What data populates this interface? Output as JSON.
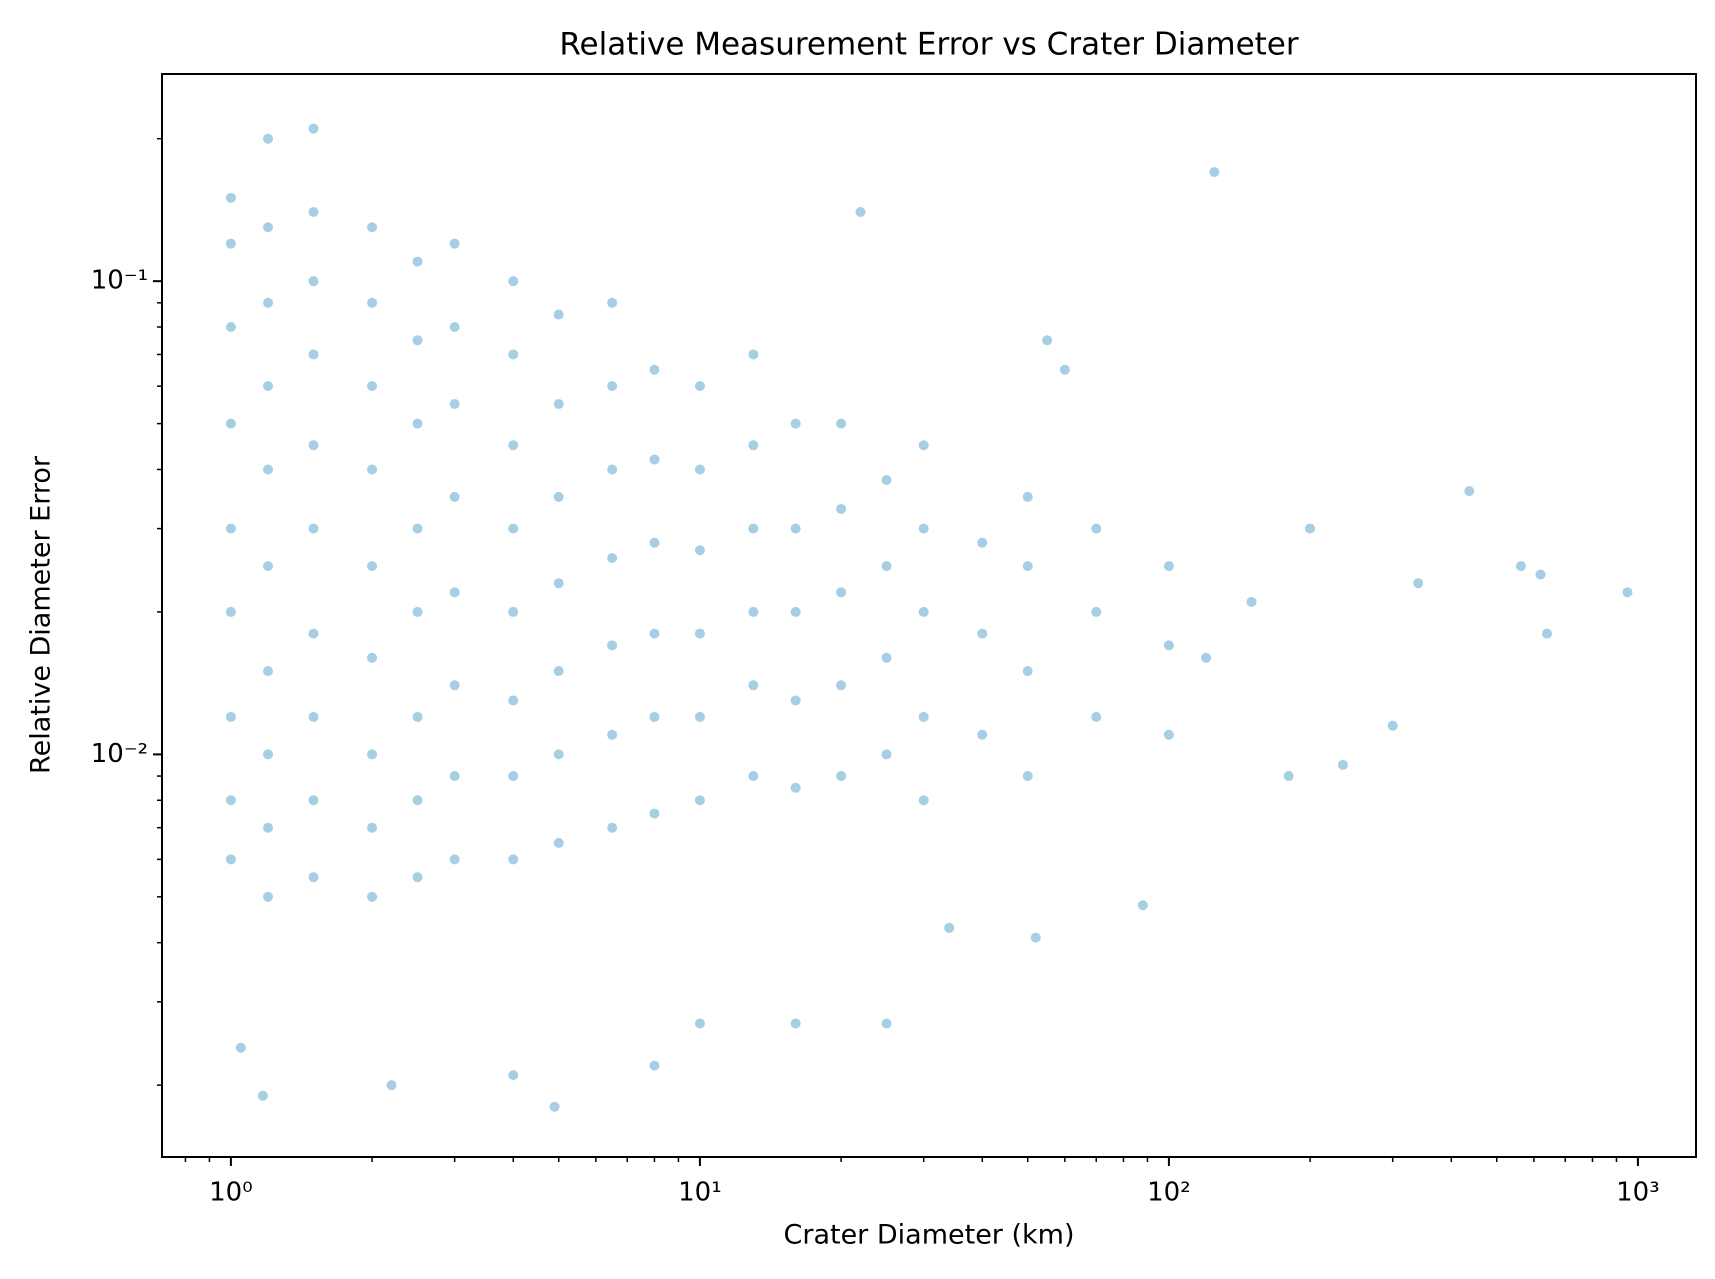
{
  "chart_data": {
    "type": "scatter",
    "title": "Relative Measurement Error vs Crater Diameter",
    "x_label": "Crater Diameter (km)",
    "y_label": "Relative Diameter Error",
    "xscale": "log",
    "yscale": "log",
    "color": "#0072b2",
    "alpha": 0.35,
    "xlim": [
      0.713,
      1330
    ],
    "ylim": [
      0.00141,
      0.274
    ],
    "xticks": [
      {
        "value": 1,
        "label": "10⁰"
      },
      {
        "value": 10,
        "label": "10¹"
      },
      {
        "value": 100,
        "label": "10²"
      },
      {
        "value": 1000,
        "label": "10³"
      }
    ],
    "yticks": [
      {
        "value": 0.01,
        "label": "10⁻²"
      },
      {
        "value": 0.1,
        "label": "10⁻¹"
      }
    ],
    "xminorticks": [
      0.8,
      0.9,
      2,
      3,
      4,
      5,
      6,
      7,
      8,
      9,
      20,
      30,
      40,
      50,
      60,
      70,
      80,
      90,
      200,
      300,
      400,
      500,
      600,
      700,
      800,
      900
    ],
    "yminorticks": [
      0.002,
      0.003,
      0.004,
      0.005,
      0.006,
      0.007,
      0.008,
      0.009,
      0.02,
      0.03,
      0.04,
      0.05,
      0.06,
      0.07,
      0.08,
      0.09,
      0.2
    ],
    "x": [
      1,
      1,
      1,
      1,
      1,
      1,
      1,
      1,
      1,
      1.2,
      1.2,
      1.2,
      1.2,
      1.2,
      1.2,
      1.2,
      1.2,
      1.2,
      1.5,
      1.5,
      1.5,
      1.5,
      1.5,
      1.5,
      1.5,
      1.5,
      1.5,
      2,
      2,
      2,
      2,
      2,
      2,
      2,
      2,
      2,
      2.5,
      2.5,
      2.5,
      2.5,
      2.5,
      2.5,
      2.5,
      2.5,
      3,
      3,
      3,
      3,
      3,
      3,
      3,
      3,
      4,
      4,
      4,
      4,
      4,
      4,
      4,
      4,
      5,
      5,
      5,
      5,
      5,
      5,
      5,
      6.5,
      6.5,
      6.5,
      6.5,
      6.5,
      6.5,
      6.5,
      8,
      8,
      8,
      8,
      8,
      8,
      10,
      10,
      10,
      10,
      10,
      10,
      13,
      13,
      13,
      13,
      13,
      13,
      16,
      16,
      16,
      16,
      16,
      20,
      20,
      20,
      20,
      20,
      25,
      25,
      25,
      25,
      30,
      30,
      30,
      30,
      30,
      40,
      40,
      40,
      50,
      50,
      50,
      50,
      70,
      70,
      70,
      100,
      100,
      100,
      1.2,
      1.5,
      2.2,
      4,
      4.9,
      1.17,
      125,
      22,
      437,
      563,
      620,
      950,
      640,
      300,
      340,
      235,
      52,
      88,
      34,
      16,
      25,
      10,
      150,
      180,
      120,
      55,
      60,
      200,
      8,
      1.05
    ],
    "values": [
      0.006,
      0.008,
      0.012,
      0.02,
      0.03,
      0.05,
      0.08,
      0.12,
      0.15,
      0.005,
      0.007,
      0.01,
      0.015,
      0.025,
      0.04,
      0.06,
      0.09,
      0.13,
      0.0055,
      0.008,
      0.012,
      0.018,
      0.03,
      0.045,
      0.07,
      0.1,
      0.14,
      0.005,
      0.007,
      0.01,
      0.016,
      0.025,
      0.04,
      0.06,
      0.09,
      0.13,
      0.0055,
      0.008,
      0.012,
      0.02,
      0.03,
      0.05,
      0.075,
      0.11,
      0.006,
      0.009,
      0.014,
      0.022,
      0.035,
      0.055,
      0.08,
      0.12,
      0.006,
      0.009,
      0.013,
      0.02,
      0.03,
      0.045,
      0.07,
      0.1,
      0.0065,
      0.01,
      0.015,
      0.023,
      0.035,
      0.055,
      0.085,
      0.007,
      0.011,
      0.017,
      0.026,
      0.04,
      0.06,
      0.09,
      0.0075,
      0.012,
      0.018,
      0.028,
      0.042,
      0.065,
      0.008,
      0.012,
      0.018,
      0.027,
      0.04,
      0.06,
      0.009,
      0.014,
      0.02,
      0.03,
      0.045,
      0.07,
      0.0085,
      0.013,
      0.02,
      0.03,
      0.05,
      0.009,
      0.014,
      0.022,
      0.033,
      0.05,
      0.01,
      0.016,
      0.025,
      0.038,
      0.008,
      0.012,
      0.02,
      0.03,
      0.045,
      0.011,
      0.018,
      0.028,
      0.009,
      0.015,
      0.025,
      0.035,
      0.012,
      0.02,
      0.03,
      0.011,
      0.017,
      0.025,
      0.2,
      0.21,
      0.002,
      0.0021,
      0.0018,
      0.0019,
      0.17,
      0.14,
      0.036,
      0.025,
      0.024,
      0.022,
      0.018,
      0.0115,
      0.023,
      0.0095,
      0.0041,
      0.0048,
      0.0043,
      0.0027,
      0.0027,
      0.0027,
      0.021,
      0.009,
      0.016,
      0.075,
      0.065,
      0.03,
      0.0022,
      0.0024
    ]
  }
}
